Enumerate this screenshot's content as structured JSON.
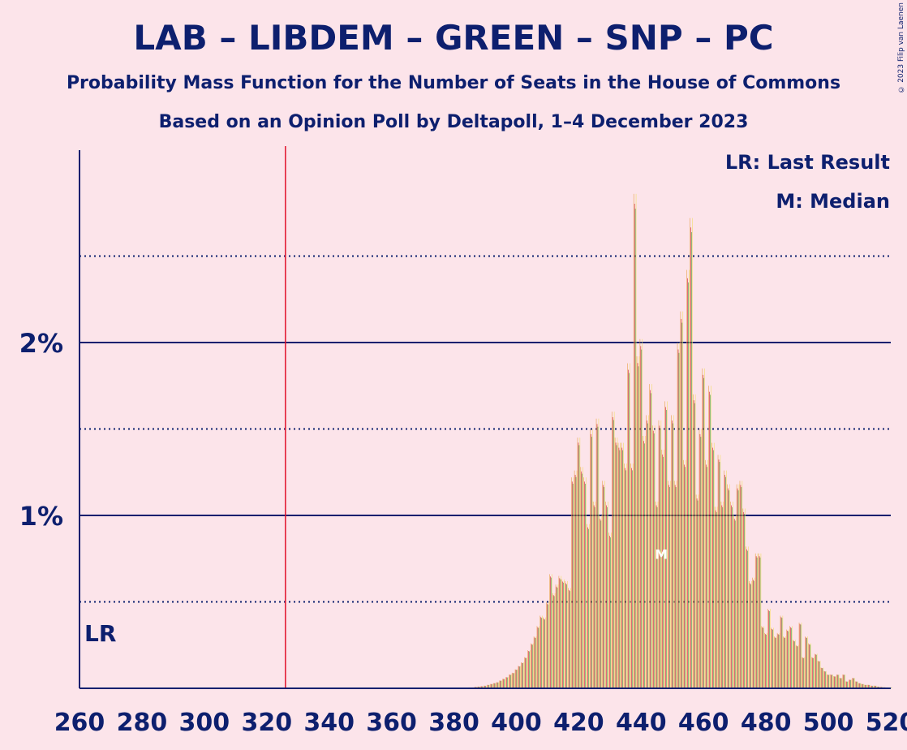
{
  "header": {
    "title": "LAB – LIBDEM – GREEN – SNP – PC",
    "subtitle1": "Probability Mass Function for the Number of Seats in the House of Commons",
    "subtitle2": "Based on an Opinion Poll by Deltapoll, 1–4 December 2023",
    "copyright": "© 2023 Filip van Laenen"
  },
  "legend": {
    "lr": "LR: Last Result",
    "median": "M: Median"
  },
  "markers": {
    "lr_label": "LR",
    "median_label": "M",
    "last_result": 326,
    "median": 447
  },
  "colors": {
    "background": "#fce4ea",
    "text": "#0d1f6e",
    "bar_orange": "#e8a24a",
    "bar_red": "#d0202e",
    "bar_green": "#4a9a3a",
    "bar_yellow": "#f2de6a",
    "lr_line": "#e0102a"
  },
  "chart_data": {
    "type": "bar",
    "title": "LAB – LIBDEM – GREEN – SNP – PC",
    "x_ticks": [
      260,
      280,
      300,
      320,
      340,
      360,
      380,
      400,
      420,
      440,
      460,
      480,
      500,
      520
    ],
    "y_ticks": [
      "1%",
      "2%"
    ],
    "xlim": [
      260,
      520
    ],
    "ylim": [
      0,
      3.0
    ],
    "grid": "solid at 1% and 2%, dotted at 0.5%, 1.5%, 2.5%",
    "x": [
      385,
      386,
      387,
      388,
      389,
      390,
      391,
      392,
      393,
      394,
      395,
      396,
      397,
      398,
      399,
      400,
      401,
      402,
      403,
      404,
      405,
      406,
      407,
      408,
      409,
      410,
      411,
      412,
      413,
      414,
      415,
      416,
      417,
      418,
      419,
      420,
      421,
      422,
      423,
      424,
      425,
      426,
      427,
      428,
      429,
      430,
      431,
      432,
      433,
      434,
      435,
      436,
      437,
      438,
      439,
      440,
      441,
      442,
      443,
      444,
      445,
      446,
      447,
      448,
      449,
      450,
      451,
      452,
      453,
      454,
      455,
      456,
      457,
      458,
      459,
      460,
      461,
      462,
      463,
      464,
      465,
      466,
      467,
      468,
      469,
      470,
      471,
      472,
      473,
      474,
      475,
      476,
      477,
      478,
      479,
      480,
      481,
      482,
      483,
      484,
      485,
      486,
      487,
      488,
      489,
      490,
      491,
      492,
      493,
      494,
      495,
      496,
      497,
      498,
      499,
      500,
      501,
      502,
      503,
      504,
      505,
      506,
      507,
      508,
      509,
      510,
      511,
      512,
      513,
      514,
      515,
      516,
      517,
      518,
      519,
      520
    ],
    "values": [
      0.005,
      0.005,
      0.008,
      0.01,
      0.012,
      0.015,
      0.02,
      0.025,
      0.03,
      0.035,
      0.045,
      0.055,
      0.065,
      0.08,
      0.09,
      0.11,
      0.13,
      0.15,
      0.18,
      0.22,
      0.26,
      0.3,
      0.36,
      0.42,
      0.41,
      0.5,
      0.66,
      0.55,
      0.6,
      0.65,
      0.63,
      0.62,
      0.58,
      1.22,
      1.26,
      1.45,
      1.28,
      1.22,
      0.95,
      1.5,
      1.08,
      1.56,
      1.0,
      1.2,
      1.08,
      0.9,
      1.6,
      1.45,
      1.42,
      1.42,
      1.3,
      1.88,
      1.3,
      2.86,
      1.92,
      2.02,
      1.46,
      1.58,
      1.76,
      1.52,
      1.08,
      1.55,
      1.38,
      1.66,
      1.2,
      1.58,
      1.2,
      2.0,
      2.18,
      1.32,
      2.42,
      2.72,
      1.7,
      1.12,
      1.5,
      1.85,
      1.32,
      1.75,
      1.42,
      1.05,
      1.35,
      1.08,
      1.26,
      1.18,
      1.08,
      1.0,
      1.18,
      1.2,
      1.04,
      0.82,
      0.62,
      0.64,
      0.78,
      0.78,
      0.36,
      0.32,
      0.46,
      0.35,
      0.3,
      0.32,
      0.42,
      0.3,
      0.34,
      0.36,
      0.28,
      0.25,
      0.38,
      0.18,
      0.3,
      0.26,
      0.18,
      0.2,
      0.16,
      0.12,
      0.1,
      0.08,
      0.08,
      0.07,
      0.08,
      0.06,
      0.08,
      0.04,
      0.05,
      0.06,
      0.04,
      0.03,
      0.025,
      0.02,
      0.02,
      0.015,
      0.015,
      0.01,
      0.008,
      0.006,
      0.005,
      0.004
    ]
  }
}
